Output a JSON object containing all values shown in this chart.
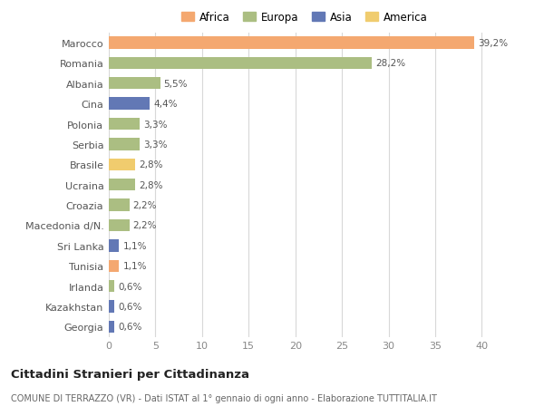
{
  "countries": [
    "Marocco",
    "Romania",
    "Albania",
    "Cina",
    "Polonia",
    "Serbia",
    "Brasile",
    "Ucraina",
    "Croazia",
    "Macedonia d/N.",
    "Sri Lanka",
    "Tunisia",
    "Irlanda",
    "Kazakhstan",
    "Georgia"
  ],
  "values": [
    39.2,
    28.2,
    5.5,
    4.4,
    3.3,
    3.3,
    2.8,
    2.8,
    2.2,
    2.2,
    1.1,
    1.1,
    0.6,
    0.6,
    0.6
  ],
  "labels": [
    "39,2%",
    "28,2%",
    "5,5%",
    "4,4%",
    "3,3%",
    "3,3%",
    "2,8%",
    "2,8%",
    "2,2%",
    "2,2%",
    "1,1%",
    "1,1%",
    "0,6%",
    "0,6%",
    "0,6%"
  ],
  "colors": [
    "#F4A870",
    "#ABBE82",
    "#ABBE82",
    "#6278B5",
    "#ABBE82",
    "#ABBE82",
    "#F0CC6E",
    "#ABBE82",
    "#ABBE82",
    "#ABBE82",
    "#6278B5",
    "#F4A870",
    "#ABBE82",
    "#6278B5",
    "#6278B5"
  ],
  "continents": [
    "Africa",
    "Europa",
    "Asia",
    "America"
  ],
  "legend_colors": [
    "#F4A870",
    "#ABBE82",
    "#6278B5",
    "#F0CC6E"
  ],
  "title": "Cittadini Stranieri per Cittadinanza",
  "subtitle": "COMUNE DI TERRAZZO (VR) - Dati ISTAT al 1° gennaio di ogni anno - Elaborazione TUTTITALIA.IT",
  "xlim": [
    0,
    42
  ],
  "xticks": [
    0,
    5,
    10,
    15,
    20,
    25,
    30,
    35,
    40
  ],
  "bg_color": "#ffffff",
  "plot_bg_color": "#ffffff",
  "grid_color": "#d8d8d8",
  "bar_height": 0.6
}
